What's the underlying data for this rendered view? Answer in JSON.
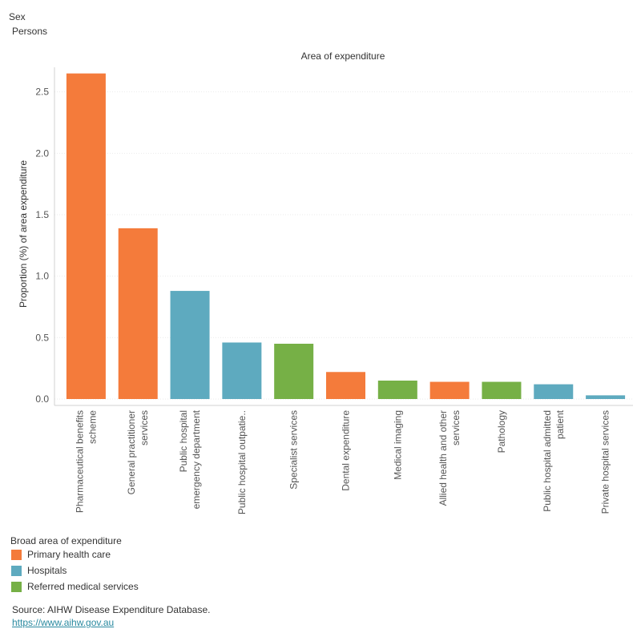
{
  "filter": {
    "label": "Sex",
    "value": "Persons"
  },
  "chart_data": {
    "type": "bar",
    "title": "Area of expenditure",
    "ylabel": "Proportion (%) of area expenditure",
    "ylim": [
      0,
      2.7
    ],
    "yticks": [
      "0.0",
      "0.5",
      "1.0",
      "1.5",
      "2.0",
      "2.5"
    ],
    "categories": [
      "Pharmaceutical benefits scheme",
      "General practitioner services",
      "Public hospital emergency department",
      "Public hospital outpatie..",
      "Specialist services",
      "Dental expenditure",
      "Medical imaging",
      "Allied health and other services",
      "Pathology",
      "Public hospital admitted patient",
      "Private hospital services"
    ],
    "category_lines": [
      [
        "Pharmaceutical benefits",
        "scheme"
      ],
      [
        "General practitioner",
        "services"
      ],
      [
        "Public hospital",
        "emergency department"
      ],
      [
        "Public hospital outpatie.."
      ],
      [
        "Specialist services"
      ],
      [
        "Dental expenditure"
      ],
      [
        "Medical imaging"
      ],
      [
        "Allied health and other",
        "services"
      ],
      [
        "Pathology"
      ],
      [
        "Public hospital admitted",
        "patient"
      ],
      [
        "Private hospital services"
      ]
    ],
    "values": [
      2.65,
      1.39,
      0.88,
      0.46,
      0.45,
      0.22,
      0.15,
      0.14,
      0.14,
      0.12,
      0.03
    ],
    "groups": [
      "Primary health care",
      "Primary health care",
      "Hospitals",
      "Hospitals",
      "Referred medical services",
      "Primary health care",
      "Referred medical services",
      "Primary health care",
      "Referred medical services",
      "Hospitals",
      "Hospitals"
    ],
    "legend": {
      "title": "Broad area of expenditure",
      "items": [
        {
          "name": "Primary health care",
          "color": "#f47b3b"
        },
        {
          "name": "Hospitals",
          "color": "#5eaabf"
        },
        {
          "name": "Referred medical services",
          "color": "#76b046"
        }
      ]
    },
    "grid": true
  },
  "source": {
    "text": "Source: AIHW Disease Expenditure Database.",
    "link": "https://www.aihw.gov.au"
  }
}
